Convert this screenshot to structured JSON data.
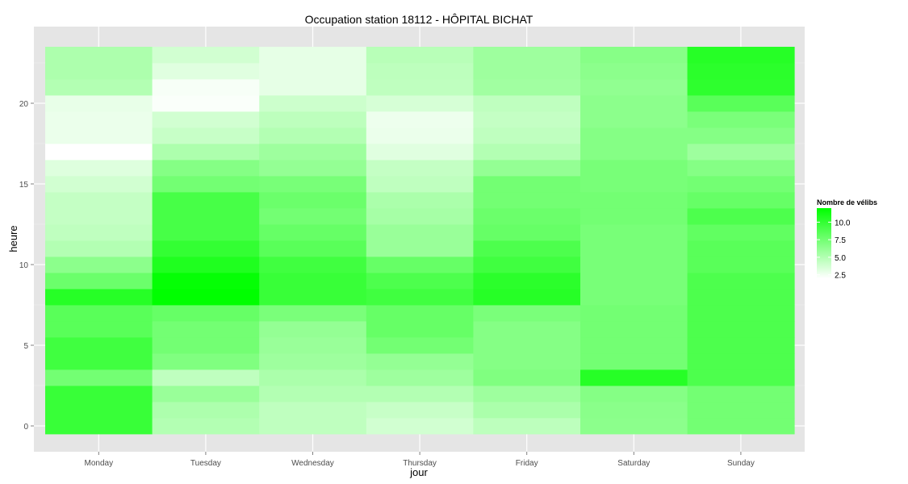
{
  "chart_data": {
    "type": "heatmap",
    "title": "Occupation station 18112 - HÔPITAL BICHAT",
    "xlabel": "jour",
    "ylabel": "heure",
    "categories": [
      "Monday",
      "Tuesday",
      "Wednesday",
      "Thursday",
      "Friday",
      "Saturday",
      "Sunday"
    ],
    "hours": [
      0,
      1,
      2,
      3,
      4,
      5,
      6,
      7,
      8,
      9,
      10,
      11,
      12,
      13,
      14,
      15,
      16,
      17,
      18,
      19,
      20,
      21,
      22,
      23
    ],
    "yticks": [
      0,
      5,
      10,
      15,
      20
    ],
    "ylim": [
      -0.5,
      23.5
    ],
    "grid": true,
    "legend": {
      "title": "Nombre de vélibs",
      "position": "right",
      "breaks": [
        2.5,
        5.0,
        7.5,
        10.0
      ],
      "break_labels": [
        "2.5",
        "5.0",
        "7.5",
        "10.0"
      ],
      "min": 2.0,
      "max": 12.0,
      "low_color": "#ffffff",
      "high_color": "#00ff00"
    },
    "values": [
      [
        9.8,
        5.0,
        4.5,
        3.8,
        4.6,
        6.5,
        7.5
      ],
      [
        9.8,
        5.2,
        4.5,
        4.2,
        5.3,
        6.6,
        7.5
      ],
      [
        9.8,
        6.0,
        5.0,
        5.0,
        5.8,
        6.8,
        7.5
      ],
      [
        7.5,
        4.5,
        5.3,
        5.8,
        7.0,
        10.5,
        9.0
      ],
      [
        9.5,
        7.0,
        5.8,
        6.2,
        6.8,
        7.5,
        9.0
      ],
      [
        9.5,
        7.5,
        6.0,
        7.5,
        6.8,
        7.5,
        9.0
      ],
      [
        8.5,
        7.5,
        6.2,
        8.0,
        6.8,
        7.5,
        9.0
      ],
      [
        8.5,
        8.0,
        7.2,
        8.0,
        7.2,
        7.5,
        9.0
      ],
      [
        10.5,
        12.0,
        9.8,
        9.5,
        10.5,
        7.3,
        9.0
      ],
      [
        7.8,
        11.8,
        9.8,
        9.0,
        10.3,
        7.3,
        9.0
      ],
      [
        6.5,
        10.8,
        9.5,
        8.0,
        9.5,
        7.3,
        8.5
      ],
      [
        5.0,
        10.0,
        8.5,
        6.0,
        9.0,
        7.3,
        8.5
      ],
      [
        4.5,
        9.2,
        8.0,
        6.0,
        8.0,
        7.3,
        8.2
      ],
      [
        4.3,
        9.2,
        7.5,
        5.5,
        7.8,
        7.5,
        9.0
      ],
      [
        4.3,
        9.2,
        7.8,
        5.3,
        7.5,
        7.5,
        8.0
      ],
      [
        3.8,
        7.5,
        7.3,
        4.5,
        7.5,
        7.3,
        7.5
      ],
      [
        3.3,
        6.8,
        6.2,
        4.3,
        6.2,
        7.3,
        6.8
      ],
      [
        2.0,
        5.2,
        5.8,
        3.2,
        5.0,
        6.8,
        5.8
      ],
      [
        2.8,
        4.2,
        5.0,
        2.8,
        4.5,
        6.8,
        6.8
      ],
      [
        2.8,
        3.8,
        4.6,
        2.7,
        4.3,
        6.5,
        7.2
      ],
      [
        2.9,
        2.2,
        4.0,
        3.6,
        4.5,
        6.5,
        8.5
      ],
      [
        5.0,
        2.3,
        3.0,
        4.5,
        5.7,
        6.3,
        10.2
      ],
      [
        5.2,
        3.2,
        3.0,
        4.6,
        5.8,
        6.5,
        10.3
      ],
      [
        5.2,
        3.8,
        3.0,
        4.8,
        5.8,
        6.7,
        10.5
      ]
    ]
  }
}
